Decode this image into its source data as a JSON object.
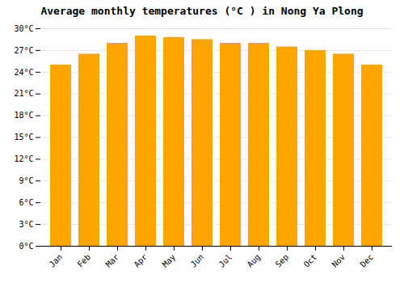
{
  "chart_data": {
    "type": "bar",
    "title": "Average monthly temperatures (°C ) in Nong Ya Plong",
    "categories": [
      "Jan",
      "Feb",
      "Mar",
      "Apr",
      "May",
      "Jun",
      "Jul",
      "Aug",
      "Sep",
      "Oct",
      "Nov",
      "Dec"
    ],
    "values": [
      25.0,
      26.5,
      28.0,
      29.0,
      28.8,
      28.5,
      28.0,
      28.0,
      27.5,
      27.0,
      26.5,
      25.0
    ],
    "color": "#FFA500",
    "ylim": [
      0,
      30
    ],
    "yticks": [
      {
        "value": 0,
        "label": "0°C"
      },
      {
        "value": 3,
        "label": "3°C"
      },
      {
        "value": 6,
        "label": "6°C"
      },
      {
        "value": 9,
        "label": "9°C"
      },
      {
        "value": 12,
        "label": "12°C"
      },
      {
        "value": 15,
        "label": "15°C"
      },
      {
        "value": 18,
        "label": "18°C"
      },
      {
        "value": 21,
        "label": "21°C"
      },
      {
        "value": 24,
        "label": "24°C"
      },
      {
        "value": 27,
        "label": "27°C"
      },
      {
        "value": 30,
        "label": "30°C"
      }
    ],
    "grid": true
  }
}
